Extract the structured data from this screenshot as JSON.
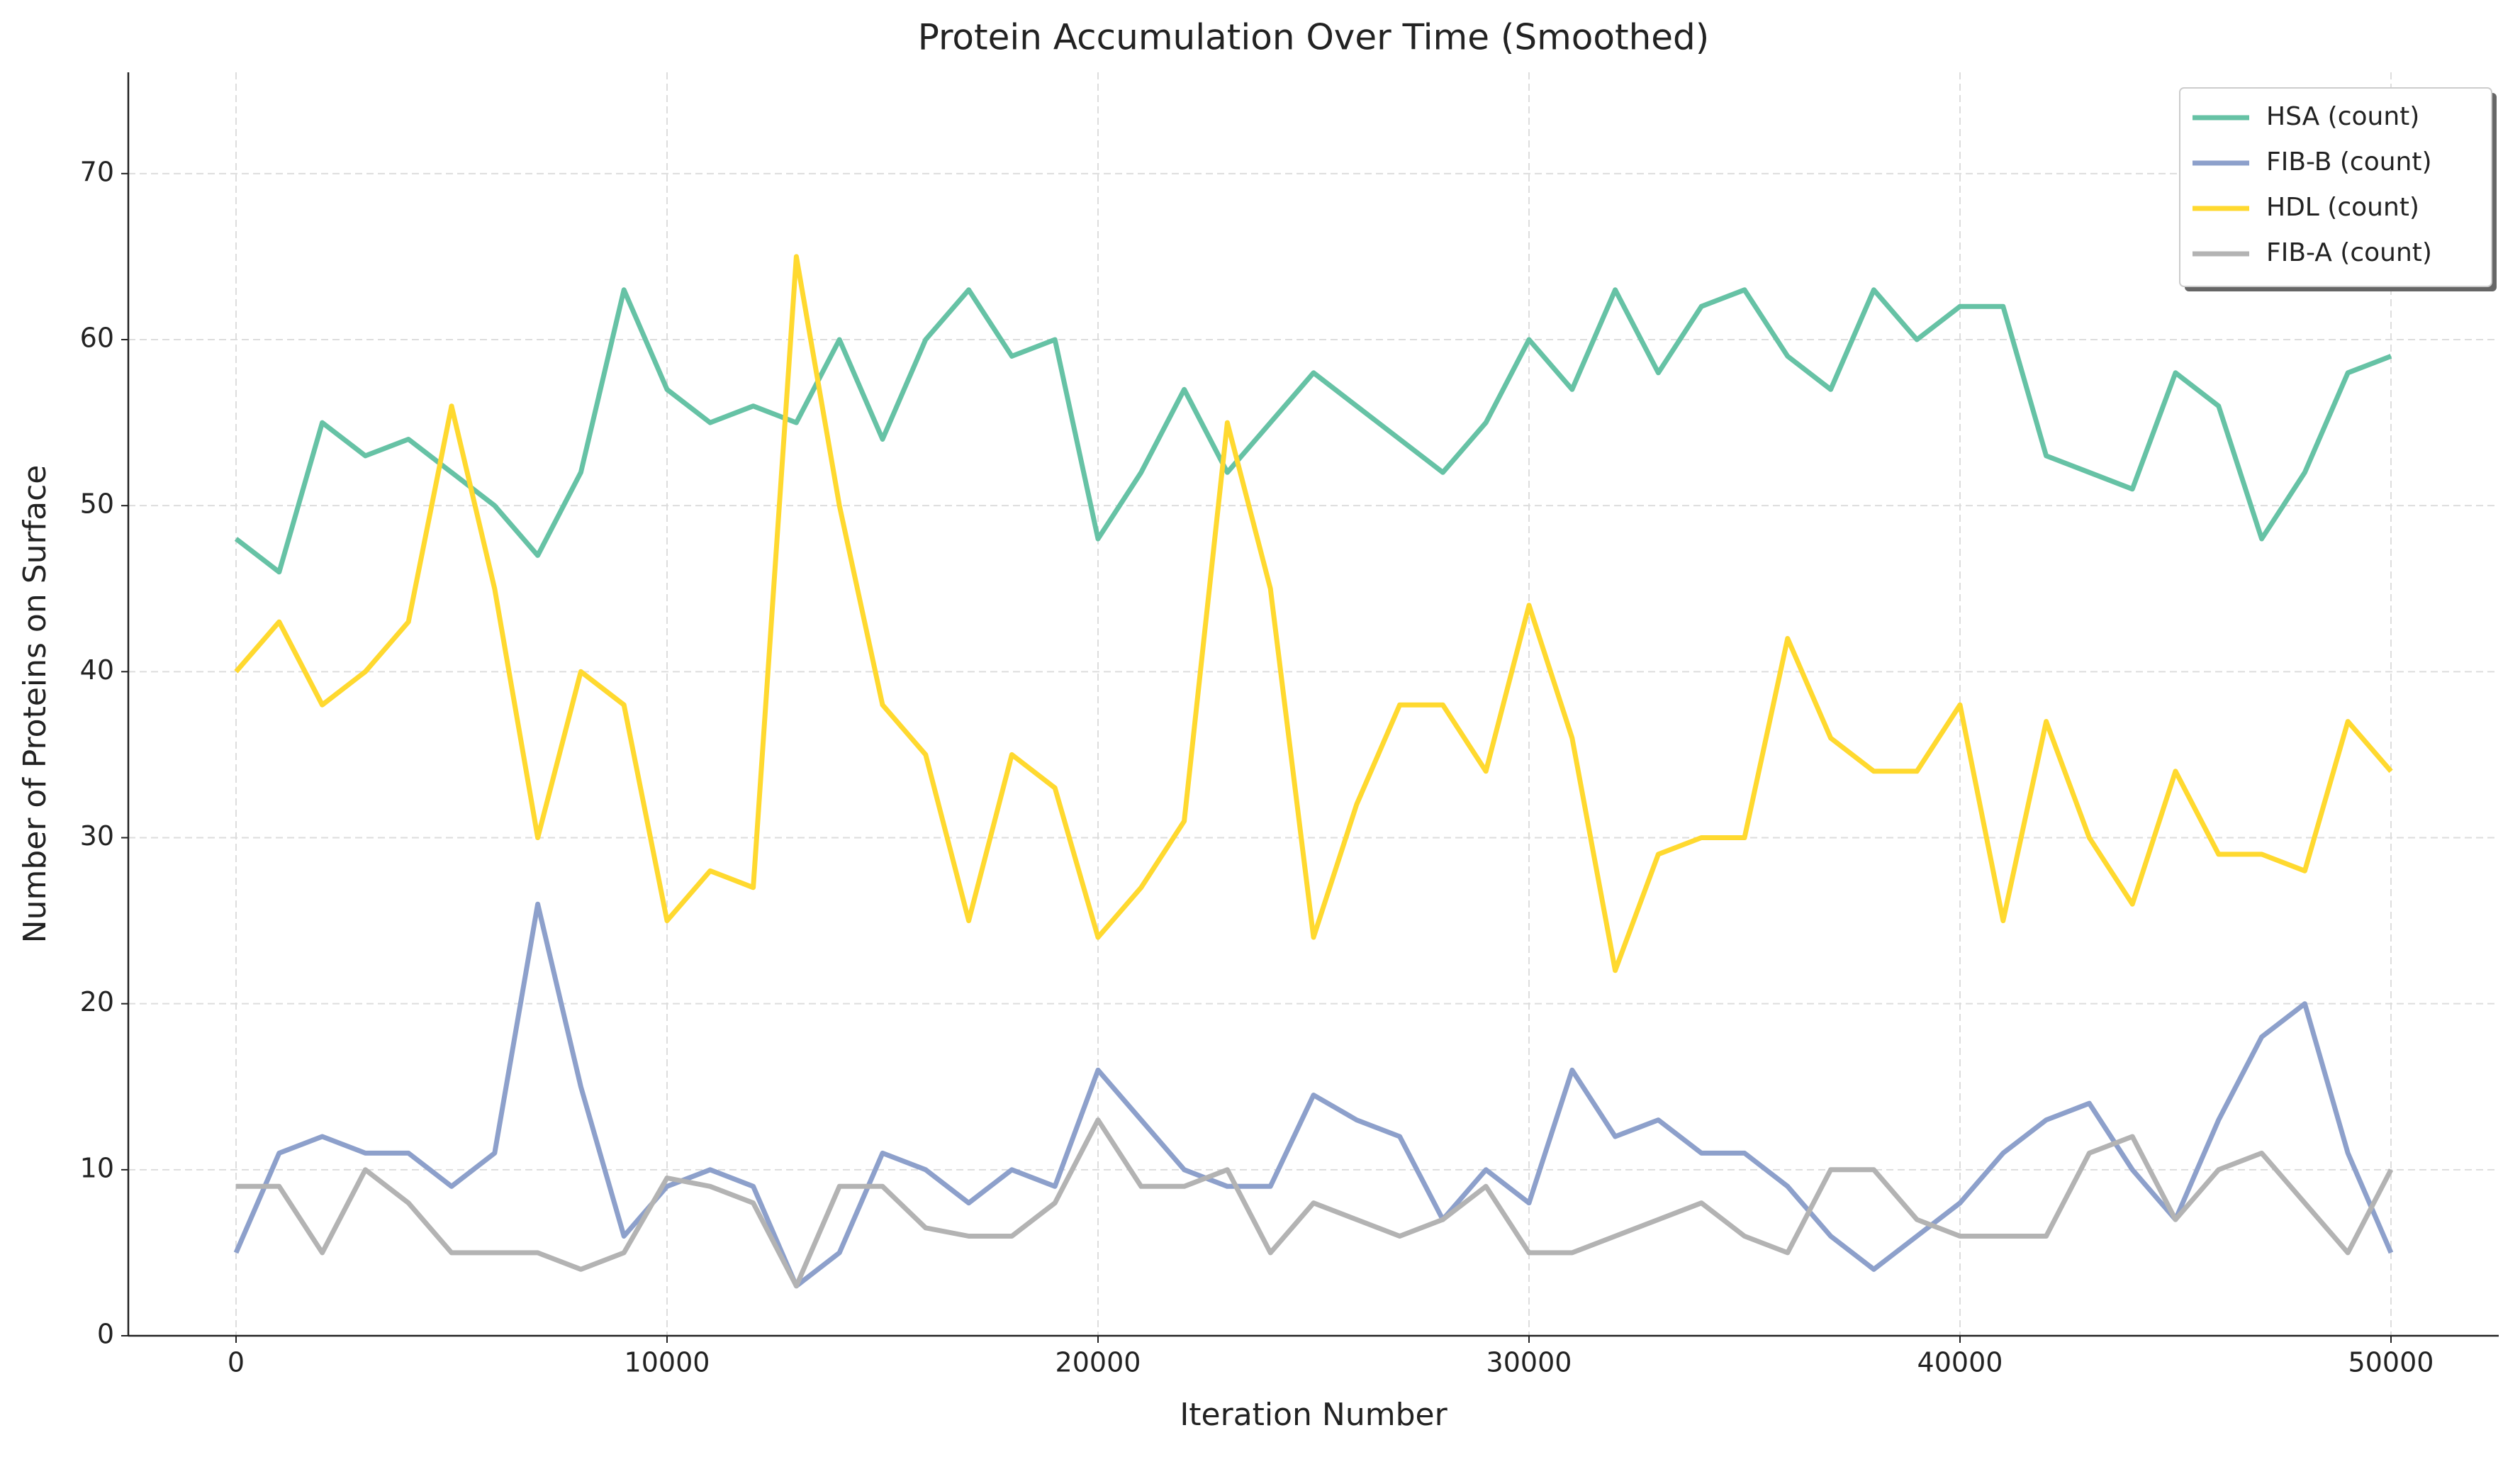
{
  "chart_data": {
    "type": "line",
    "title": "Protein Accumulation Over Time (Smoothed)",
    "x_label": "Iteration Number",
    "y_label": "Number of Proteins on Surface",
    "x": [
      0,
      1000,
      2000,
      3000,
      4000,
      5000,
      6000,
      7000,
      8000,
      9000,
      10000,
      11000,
      12000,
      13000,
      14000,
      15000,
      16000,
      17000,
      18000,
      19000,
      20000,
      21000,
      22000,
      23000,
      24000,
      25000,
      26000,
      27000,
      28000,
      29000,
      30000,
      31000,
      32000,
      33000,
      34000,
      35000,
      36000,
      37000,
      38000,
      39000,
      40000,
      41000,
      42000,
      43000,
      44000,
      45000,
      46000,
      47000,
      48000,
      49000,
      50000
    ],
    "series": [
      {
        "name": "HSA (count)",
        "color": "#66c2a5",
        "values": [
          48,
          46,
          55,
          53,
          54,
          52,
          50,
          47,
          52,
          63,
          57,
          55,
          56,
          55,
          60,
          54,
          60,
          63,
          59,
          60,
          48,
          52,
          57,
          52,
          55,
          58,
          56,
          54,
          52,
          55,
          60,
          57,
          63,
          58,
          62,
          63,
          59,
          57,
          63,
          60,
          62,
          62,
          53,
          52,
          51,
          58,
          56,
          48,
          52,
          58,
          59
        ]
      },
      {
        "name": "FIB-B (count)",
        "color": "#8da0cb",
        "values": [
          5,
          11,
          12,
          11,
          11,
          9,
          11,
          26,
          15,
          6,
          9,
          10,
          9,
          3,
          5,
          11,
          10,
          8,
          10,
          9,
          16,
          13,
          10,
          9,
          9,
          14.5,
          13,
          12,
          7,
          10,
          8,
          16,
          12,
          13,
          11,
          11,
          9,
          6,
          4,
          6,
          8,
          11,
          13,
          14,
          10,
          7,
          13,
          18,
          20,
          11,
          5
        ]
      },
      {
        "name": "HDL (count)",
        "color": "#ffd92f",
        "values": [
          40,
          43,
          38,
          40,
          43,
          56,
          45,
          30,
          40,
          38,
          25,
          28,
          27,
          65,
          50,
          38,
          35,
          25,
          35,
          33,
          24,
          27,
          31,
          55,
          45,
          24,
          32,
          38,
          38,
          34,
          44,
          36,
          22,
          29,
          30,
          30,
          42,
          36,
          34,
          34,
          38,
          25,
          37,
          30,
          26,
          34,
          29,
          29,
          28,
          37,
          34
        ]
      },
      {
        "name": "FIB-A (count)",
        "color": "#b3b3b3",
        "values": [
          9,
          9,
          5,
          10,
          8,
          5,
          5,
          5,
          4,
          5,
          9.5,
          9,
          8,
          3,
          9,
          9,
          6.5,
          6,
          6,
          8,
          13,
          9,
          9,
          10,
          5,
          8,
          7,
          6,
          7,
          9,
          5,
          5,
          6,
          7,
          8,
          6,
          5,
          10,
          10,
          7,
          6,
          6,
          6,
          11,
          12,
          7,
          10,
          11,
          8,
          5,
          10
        ]
      }
    ],
    "xlim": [
      -2500,
      52500
    ],
    "ylim": [
      0,
      76.1
    ],
    "xticks": [
      0,
      10000,
      20000,
      30000,
      40000,
      50000
    ],
    "yticks": [
      0,
      10,
      20,
      30,
      40,
      50,
      60,
      70
    ],
    "grid": true,
    "legend": "upper right"
  }
}
